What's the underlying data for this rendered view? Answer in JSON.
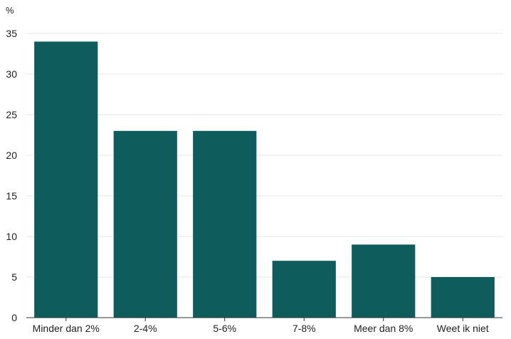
{
  "chart_data": {
    "type": "bar",
    "ylabel": "%",
    "categories": [
      "Minder dan 2%",
      "2-4%",
      "5-6%",
      "7-8%",
      "Meer dan 8%",
      "Weet ik niet"
    ],
    "values": [
      34,
      23,
      23,
      7,
      9,
      5
    ],
    "ylim": [
      0,
      35
    ],
    "yticks": [
      0,
      5,
      10,
      15,
      20,
      25,
      30,
      35
    ],
    "grid": true,
    "colors": {
      "bar": "#0e5c5c"
    }
  }
}
